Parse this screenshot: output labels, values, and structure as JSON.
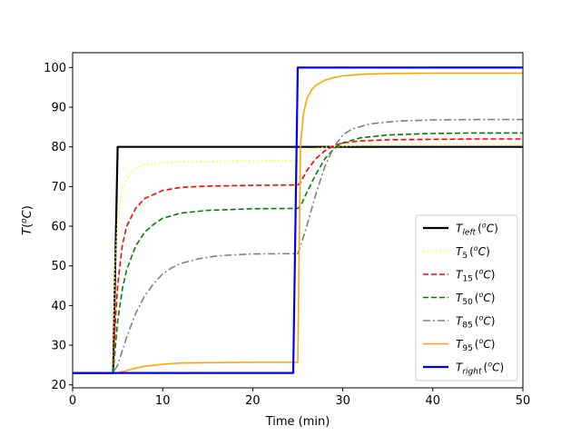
{
  "chart_data": {
    "type": "line",
    "xlabel": "Time (min)",
    "ylabel_main": "T",
    "ylabel_unit_sup": "o",
    "ylabel_unit": "C",
    "xlim": [
      0,
      50
    ],
    "ylim": [
      19.25,
      103.75
    ],
    "xticks": [
      "0",
      "10",
      "20",
      "30",
      "40",
      "50"
    ],
    "xtick_values": [
      0,
      10,
      20,
      30,
      40,
      50
    ],
    "yticks": [
      "20",
      "30",
      "40",
      "50",
      "60",
      "70",
      "80",
      "90",
      "100"
    ],
    "ytick_values": [
      20,
      30,
      40,
      50,
      60,
      70,
      80,
      90,
      100
    ],
    "grid": false,
    "legend_position": "lower-right",
    "series": [
      {
        "name_main": "T",
        "name_sub": "left",
        "sub_italic": true,
        "unit_sup": "o",
        "unit": "C",
        "color": "#000000",
        "dash": "",
        "width": 2.2,
        "x": [
          0,
          4.5,
          5,
          25,
          50
        ],
        "y": [
          23,
          23,
          80,
          80,
          80
        ]
      },
      {
        "name_main": "T",
        "name_sub": "5",
        "sub_italic": false,
        "unit_sup": "o",
        "unit": "C",
        "color": "#ffff00",
        "dash": "1.5,3",
        "width": 1.6,
        "x": [
          0,
          4.5,
          4.7,
          5,
          5.5,
          6,
          7,
          8,
          10,
          12,
          15,
          20,
          25,
          25.2,
          25.5,
          26,
          27,
          28,
          30,
          33,
          36,
          40,
          45,
          50
        ],
        "y": [
          23,
          23,
          50,
          62,
          69,
          72,
          74.5,
          75.5,
          76.0,
          76.2,
          76.3,
          76.4,
          76.5,
          77,
          78,
          79,
          79.6,
          79.9,
          80.2,
          80.5,
          80.6,
          80.6,
          80.6,
          80.6
        ]
      },
      {
        "name_main": "T",
        "name_sub": "15",
        "sub_italic": false,
        "unit_sup": "o",
        "unit": "C",
        "color": "#ff0000",
        "dash": "6,3",
        "width": 1.6,
        "x": [
          0,
          4.5,
          4.7,
          5,
          5.5,
          6,
          7,
          8,
          10,
          12,
          15,
          20,
          25,
          25.3,
          26,
          27,
          28,
          29,
          30,
          32,
          35,
          40,
          45,
          50
        ],
        "y": [
          23,
          23,
          34,
          45,
          55,
          60,
          64.5,
          67,
          69,
          69.8,
          70.1,
          70.3,
          70.4,
          71,
          74,
          77,
          79,
          80.3,
          81,
          81.5,
          81.8,
          81.9,
          82,
          82
        ]
      },
      {
        "name_main": "T",
        "name_sub": "50",
        "sub_italic": false,
        "unit_sup": "o",
        "unit": "C",
        "color": "#008000",
        "dash": "6,3",
        "width": 1.6,
        "x": [
          0,
          4.5,
          5,
          5.5,
          6,
          7,
          8,
          9,
          10,
          12,
          15,
          20,
          25,
          25.3,
          26,
          27,
          28,
          29,
          30,
          32,
          35,
          40,
          45,
          50
        ],
        "y": [
          23,
          23,
          36,
          44,
          49,
          55,
          58.5,
          60.5,
          62,
          63.3,
          64.0,
          64.4,
          64.5,
          65,
          68.5,
          73,
          77,
          79.5,
          81,
          82.3,
          83,
          83.4,
          83.5,
          83.5
        ]
      },
      {
        "name_main": "T",
        "name_sub": "85",
        "sub_italic": false,
        "unit_sup": "o",
        "unit": "C",
        "color": "#808080",
        "dash": "8,3,2,3",
        "width": 1.6,
        "x": [
          0,
          4.5,
          5,
          6,
          7,
          8,
          9,
          10,
          11,
          12,
          14,
          16,
          18,
          20,
          25,
          25.3,
          26,
          27,
          28,
          29,
          30,
          31,
          33,
          36,
          40,
          45,
          50
        ],
        "y": [
          23,
          23,
          25,
          32,
          38,
          42.5,
          45.5,
          48,
          49.5,
          50.6,
          51.8,
          52.5,
          52.8,
          53,
          53.1,
          55,
          60,
          68,
          75,
          80,
          83,
          84.5,
          85.8,
          86.5,
          86.8,
          86.9,
          86.9
        ]
      },
      {
        "name_main": "T",
        "name_sub": "95",
        "sub_italic": false,
        "unit_sup": "o",
        "unit": "C",
        "color": "#ffa500",
        "dash": "",
        "width": 1.6,
        "x": [
          0,
          4.5,
          5,
          6,
          7,
          8,
          10,
          12,
          15,
          20,
          25,
          25.3,
          25.6,
          26,
          26.5,
          27,
          28,
          29,
          30,
          32,
          35,
          40,
          45,
          50
        ],
        "y": [
          23,
          23,
          23.1,
          23.6,
          24.2,
          24.7,
          25.2,
          25.5,
          25.6,
          25.7,
          25.7,
          80,
          88,
          92,
          94.3,
          95.5,
          96.8,
          97.5,
          97.9,
          98.3,
          98.5,
          98.6,
          98.6,
          98.6
        ]
      },
      {
        "name_main": "T",
        "name_sub": "right",
        "sub_italic": true,
        "unit_sup": "o",
        "unit": "C",
        "color": "#0000ff",
        "dash": "",
        "width": 2.2,
        "x": [
          0,
          24.5,
          25,
          50
        ],
        "y": [
          23,
          23,
          100,
          100
        ]
      }
    ]
  }
}
